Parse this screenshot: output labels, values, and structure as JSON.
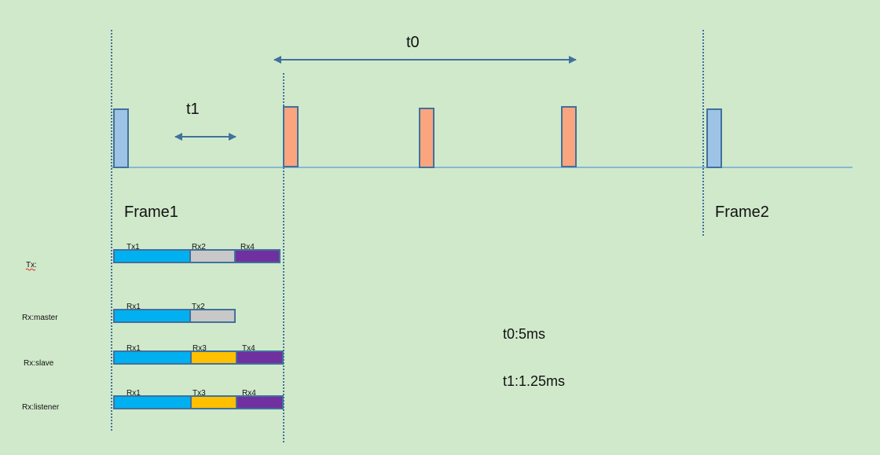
{
  "labels": {
    "t0": "t0",
    "t1": "t1",
    "frame1": "Frame1",
    "frame2": "Frame2",
    "t0_value": "t0:5ms",
    "t1_value": "t1:1.25ms"
  },
  "colors": {
    "background": "#d0e9cb",
    "frame_pulse": "#9dc3e6",
    "slot_pulse": "#fba57e",
    "outline": "#41719c",
    "cyan": "#00b0f0",
    "gray": "#c8c8c8",
    "gold": "#ffc000",
    "purple": "#7030a0"
  },
  "rows": [
    {
      "label": "Tx:",
      "segments": [
        {
          "label": "Tx1",
          "color": "cyan"
        },
        {
          "label": "Rx2",
          "color": "gray"
        },
        {
          "label": "Rx4",
          "color": "purple"
        }
      ]
    },
    {
      "label": "Rx:master",
      "segments": [
        {
          "label": "Rx1",
          "color": "cyan"
        },
        {
          "label": "Tx2",
          "color": "gray"
        }
      ]
    },
    {
      "label": "Rx:slave",
      "segments": [
        {
          "label": "Rx1",
          "color": "cyan"
        },
        {
          "label": "Rx3",
          "color": "gold"
        },
        {
          "label": "Tx4",
          "color": "purple"
        }
      ]
    },
    {
      "label": "Rx:listener",
      "segments": [
        {
          "label": "Rx1",
          "color": "cyan"
        },
        {
          "label": "Tx3",
          "color": "gold"
        },
        {
          "label": "Rx4",
          "color": "purple"
        }
      ]
    }
  ]
}
